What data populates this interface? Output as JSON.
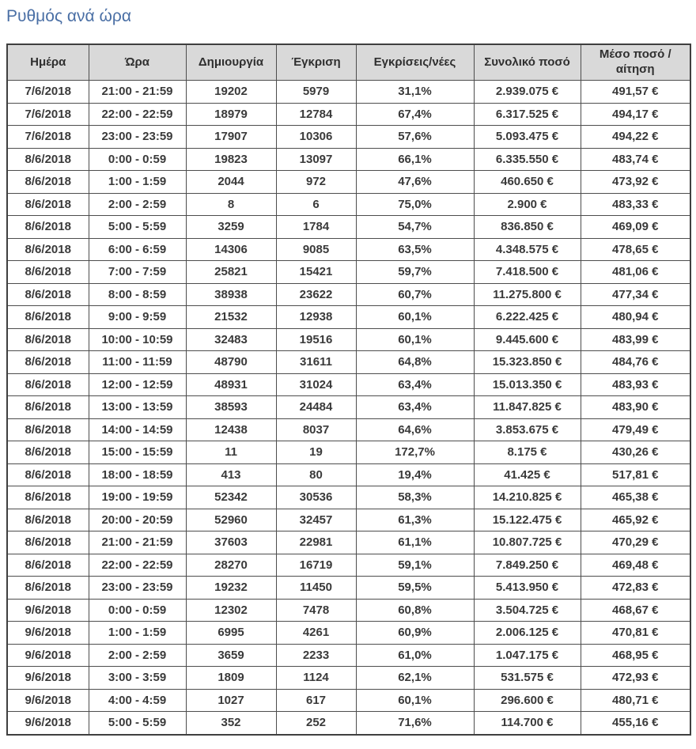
{
  "page": {
    "title": "Ρυθμός ανά ώρα"
  },
  "colors": {
    "title_text": "#4a6fa5",
    "header_bg": "#d9d9d9",
    "header_text": "#2f2f2f",
    "cell_text": "#3a3a3a",
    "border": "#4d4d4d"
  },
  "table": {
    "columns": [
      "Ημέρα",
      "Ώρα",
      "Δημιουργία",
      "Έγκριση",
      "Εγκρίσεις/νέες",
      "Συνολικό ποσό",
      "Μέσο ποσό / αίτηση"
    ],
    "rows": [
      [
        "7/6/2018",
        "21:00 - 21:59",
        "19202",
        "5979",
        "31,1%",
        "2.939.075 €",
        "491,57 €"
      ],
      [
        "7/6/2018",
        "22:00 - 22:59",
        "18979",
        "12784",
        "67,4%",
        "6.317.525 €",
        "494,17 €"
      ],
      [
        "7/6/2018",
        "23:00 - 23:59",
        "17907",
        "10306",
        "57,6%",
        "5.093.475 €",
        "494,22 €"
      ],
      [
        "8/6/2018",
        "0:00 - 0:59",
        "19823",
        "13097",
        "66,1%",
        "6.335.550 €",
        "483,74 €"
      ],
      [
        "8/6/2018",
        "1:00 - 1:59",
        "2044",
        "972",
        "47,6%",
        "460.650 €",
        "473,92 €"
      ],
      [
        "8/6/2018",
        "2:00 - 2:59",
        "8",
        "6",
        "75,0%",
        "2.900 €",
        "483,33 €"
      ],
      [
        "8/6/2018",
        "5:00 - 5:59",
        "3259",
        "1784",
        "54,7%",
        "836.850 €",
        "469,09 €"
      ],
      [
        "8/6/2018",
        "6:00 - 6:59",
        "14306",
        "9085",
        "63,5%",
        "4.348.575 €",
        "478,65 €"
      ],
      [
        "8/6/2018",
        "7:00 - 7:59",
        "25821",
        "15421",
        "59,7%",
        "7.418.500 €",
        "481,06 €"
      ],
      [
        "8/6/2018",
        "8:00 - 8:59",
        "38938",
        "23622",
        "60,7%",
        "11.275.800 €",
        "477,34 €"
      ],
      [
        "8/6/2018",
        "9:00 - 9:59",
        "21532",
        "12938",
        "60,1%",
        "6.222.425 €",
        "480,94 €"
      ],
      [
        "8/6/2018",
        "10:00 - 10:59",
        "32483",
        "19516",
        "60,1%",
        "9.445.600 €",
        "483,99 €"
      ],
      [
        "8/6/2018",
        "11:00 - 11:59",
        "48790",
        "31611",
        "64,8%",
        "15.323.850 €",
        "484,76 €"
      ],
      [
        "8/6/2018",
        "12:00 - 12:59",
        "48931",
        "31024",
        "63,4%",
        "15.013.350 €",
        "483,93 €"
      ],
      [
        "8/6/2018",
        "13:00 - 13:59",
        "38593",
        "24484",
        "63,4%",
        "11.847.825 €",
        "483,90 €"
      ],
      [
        "8/6/2018",
        "14:00 - 14:59",
        "12438",
        "8037",
        "64,6%",
        "3.853.675 €",
        "479,49 €"
      ],
      [
        "8/6/2018",
        "15:00 - 15:59",
        "11",
        "19",
        "172,7%",
        "8.175 €",
        "430,26 €"
      ],
      [
        "8/6/2018",
        "18:00 - 18:59",
        "413",
        "80",
        "19,4%",
        "41.425 €",
        "517,81 €"
      ],
      [
        "8/6/2018",
        "19:00 - 19:59",
        "52342",
        "30536",
        "58,3%",
        "14.210.825 €",
        "465,38 €"
      ],
      [
        "8/6/2018",
        "20:00 - 20:59",
        "52960",
        "32457",
        "61,3%",
        "15.122.475 €",
        "465,92 €"
      ],
      [
        "8/6/2018",
        "21:00 - 21:59",
        "37603",
        "22981",
        "61,1%",
        "10.807.725 €",
        "470,29 €"
      ],
      [
        "8/6/2018",
        "22:00 - 22:59",
        "28270",
        "16719",
        "59,1%",
        "7.849.250 €",
        "469,48 €"
      ],
      [
        "8/6/2018",
        "23:00 - 23:59",
        "19232",
        "11450",
        "59,5%",
        "5.413.950 €",
        "472,83 €"
      ],
      [
        "9/6/2018",
        "0:00 - 0:59",
        "12302",
        "7478",
        "60,8%",
        "3.504.725 €",
        "468,67 €"
      ],
      [
        "9/6/2018",
        "1:00 - 1:59",
        "6995",
        "4261",
        "60,9%",
        "2.006.125 €",
        "470,81 €"
      ],
      [
        "9/6/2018",
        "2:00 - 2:59",
        "3659",
        "2233",
        "61,0%",
        "1.047.175 €",
        "468,95 €"
      ],
      [
        "9/6/2018",
        "3:00 - 3:59",
        "1809",
        "1124",
        "62,1%",
        "531.575 €",
        "472,93 €"
      ],
      [
        "9/6/2018",
        "4:00 - 4:59",
        "1027",
        "617",
        "60,1%",
        "296.600 €",
        "480,71 €"
      ],
      [
        "9/6/2018",
        "5:00 - 5:59",
        "352",
        "252",
        "71,6%",
        "114.700 €",
        "455,16 €"
      ]
    ]
  }
}
